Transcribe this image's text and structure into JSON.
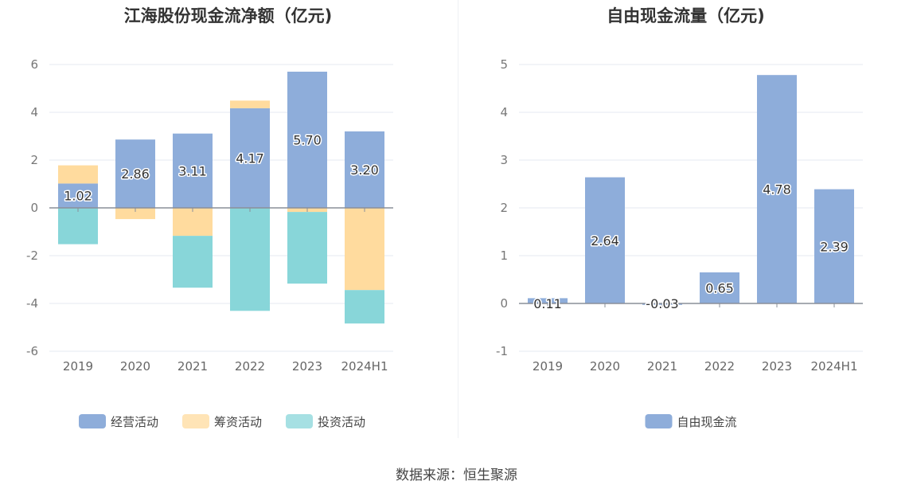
{
  "chart_data": [
    {
      "type": "bar",
      "stacked": true,
      "title": "江海股份现金流净额（亿元)",
      "categories": [
        "2019",
        "2020",
        "2021",
        "2022",
        "2023",
        "2024H1"
      ],
      "series": [
        {
          "name": "经营活动",
          "color": "#8eadda",
          "values": [
            1.02,
            2.86,
            3.11,
            4.17,
            5.7,
            3.2
          ]
        },
        {
          "name": "筹资活动",
          "color": "#ffdb9e",
          "values": [
            0.76,
            -0.47,
            -1.17,
            0.32,
            -0.17,
            -3.44
          ]
        },
        {
          "name": "投资活动",
          "color": "#88d6d9",
          "values": [
            -1.52,
            0.0,
            -2.17,
            -4.31,
            -3.0,
            -1.4
          ]
        }
      ],
      "data_labels": [
        "1.02",
        "2.86",
        "3.11",
        "4.17",
        "5.70",
        "3.20"
      ],
      "ylim": [
        -6,
        6
      ],
      "yticks": [
        6,
        4,
        2,
        0,
        -2,
        -4,
        -6
      ],
      "legend": "bottom",
      "grid": true
    },
    {
      "type": "bar",
      "title": "自由现金流量（亿元)",
      "categories": [
        "2019",
        "2020",
        "2021",
        "2022",
        "2023",
        "2024H1"
      ],
      "series": [
        {
          "name": "自由现金流",
          "color": "#8eadda",
          "values": [
            0.11,
            2.64,
            -0.03,
            0.65,
            4.78,
            2.39
          ]
        }
      ],
      "data_labels": [
        "0.11",
        "2.64",
        "-0.03",
        "0.65",
        "4.78",
        "2.39"
      ],
      "ylim": [
        -1,
        5
      ],
      "yticks": [
        5,
        4,
        3,
        2,
        1,
        0,
        -1
      ],
      "legend": "bottom",
      "grid": true
    }
  ],
  "footer": {
    "source": "数据来源：恒生聚源"
  }
}
